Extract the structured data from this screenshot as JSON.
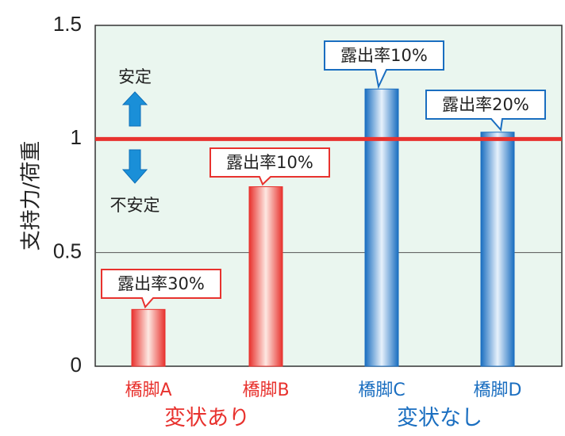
{
  "chart_data": {
    "type": "bar",
    "title": "",
    "ylabel": "支持力/荷重",
    "xlabel": "",
    "ylim": [
      0,
      1.5
    ],
    "yticks": [
      0,
      0.5,
      1,
      1.5
    ],
    "ytick_labels": [
      "0",
      "0.5",
      "1",
      "1.5"
    ],
    "grid": true,
    "reference_line": {
      "y": 1,
      "color": "#e8322e"
    },
    "categories": [
      "橋脚A",
      "橋脚B",
      "橋脚C",
      "橋脚D"
    ],
    "values": [
      0.25,
      0.79,
      1.22,
      1.03
    ],
    "colors": [
      "#e8322e",
      "#e8322e",
      "#1a6ec0",
      "#1a6ec0"
    ],
    "callouts": [
      "露出率30%",
      "露出率10%",
      "露出率10%",
      "露出率20%"
    ],
    "groups": [
      {
        "label": "変状あり",
        "color": "#e8322e",
        "categories": [
          0,
          1
        ]
      },
      {
        "label": "変状なし",
        "color": "#1a6ec0",
        "categories": [
          2,
          3
        ]
      }
    ],
    "annotations": {
      "stable": "安定",
      "unstable": "不安定",
      "arrow_color": "#1a8fd8"
    },
    "plot_background": "#eaf6ef"
  }
}
